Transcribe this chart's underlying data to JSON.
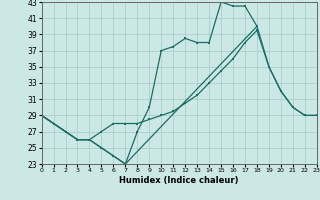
{
  "background_color": "#cce8e5",
  "grid_color": "#aacfcc",
  "line_color": "#1a6e65",
  "xlabel": "Humidex (Indice chaleur)",
  "xlim": [
    0,
    23
  ],
  "ylim": [
    23,
    43
  ],
  "xticks": [
    0,
    1,
    2,
    3,
    4,
    5,
    6,
    7,
    8,
    9,
    10,
    11,
    12,
    13,
    14,
    15,
    16,
    17,
    18,
    19,
    20,
    21,
    22,
    23
  ],
  "yticks": [
    23,
    25,
    27,
    29,
    31,
    33,
    35,
    37,
    39,
    41,
    43
  ],
  "series": [
    {
      "x": [
        0,
        1,
        2,
        3,
        4,
        5,
        6,
        7,
        8,
        9,
        10,
        11,
        12,
        13,
        14,
        15,
        16,
        17,
        18
      ],
      "y": [
        29,
        28,
        27,
        26,
        26,
        25,
        24,
        23,
        27,
        30,
        37,
        37.5,
        38.5,
        38,
        38,
        43,
        42.5,
        42.5,
        40
      ]
    },
    {
      "x": [
        0,
        2,
        3,
        4,
        5,
        6,
        7,
        8,
        9,
        10,
        11,
        12,
        13,
        14,
        15,
        16,
        17,
        18,
        19,
        20,
        21,
        22,
        23
      ],
      "y": [
        29,
        27,
        26,
        26,
        27,
        28,
        28,
        28,
        28.5,
        29,
        29.5,
        30.5,
        31.5,
        33,
        34.5,
        36,
        38,
        39.5,
        35,
        32,
        30,
        29,
        29
      ]
    },
    {
      "x": [
        0,
        2,
        3,
        4,
        7,
        18,
        19,
        20,
        21,
        22,
        23
      ],
      "y": [
        29,
        27,
        26,
        26,
        23,
        40,
        35,
        32,
        30,
        29,
        29
      ]
    }
  ]
}
